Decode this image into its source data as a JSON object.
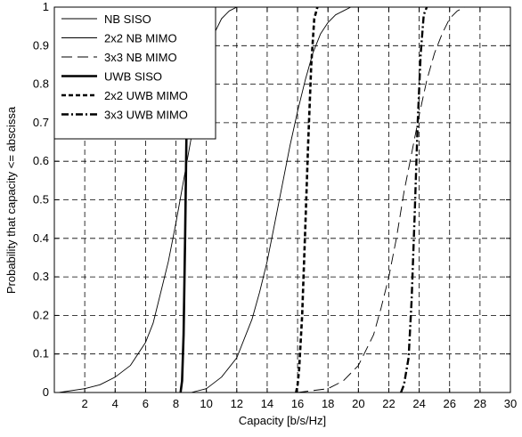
{
  "chart_data": {
    "type": "line",
    "xlabel": "Capacity [b/s/Hz]",
    "ylabel": "Probability that capacity <= abscissa",
    "xlim": [
      0,
      30
    ],
    "ylim": [
      0,
      1
    ],
    "xticks": [
      2,
      4,
      6,
      8,
      10,
      12,
      14,
      16,
      18,
      20,
      22,
      24,
      26,
      28,
      30
    ],
    "yticks": [
      0,
      0.1,
      0.2,
      0.3,
      0.4,
      0.5,
      0.6,
      0.7,
      0.8,
      0.9,
      1
    ],
    "grid": true,
    "legend_position": "top-left",
    "series": [
      {
        "name": "NB SISO",
        "style": "solid-thin",
        "x": [
          0.3,
          2,
          3,
          4,
          5,
          6,
          6.5,
          7,
          7.5,
          8,
          8.5,
          9,
          9.5,
          10,
          10.5,
          11,
          11.5,
          12
        ],
        "y": [
          0,
          0.01,
          0.02,
          0.04,
          0.07,
          0.13,
          0.18,
          0.26,
          0.34,
          0.44,
          0.55,
          0.66,
          0.76,
          0.86,
          0.93,
          0.97,
          0.99,
          1
        ]
      },
      {
        "name": "2x2 NB MIMO",
        "style": "solid-thin",
        "x": [
          9,
          10,
          11,
          12,
          13,
          13.5,
          14,
          14.5,
          15,
          15.5,
          16,
          16.5,
          17,
          17.5,
          18,
          18.5,
          19,
          19.5
        ],
        "y": [
          0,
          0.01,
          0.04,
          0.09,
          0.19,
          0.26,
          0.34,
          0.44,
          0.54,
          0.64,
          0.73,
          0.81,
          0.88,
          0.93,
          0.96,
          0.98,
          0.99,
          1
        ]
      },
      {
        "name": "3x3 NB MIMO",
        "style": "dashed-long",
        "x": [
          16,
          18,
          19,
          20,
          21,
          21.5,
          22,
          22.5,
          23,
          23.5,
          24,
          24.5,
          25,
          25.5,
          26,
          26.5,
          27
        ],
        "y": [
          0,
          0.01,
          0.03,
          0.07,
          0.15,
          0.22,
          0.3,
          0.4,
          0.52,
          0.62,
          0.72,
          0.81,
          0.88,
          0.93,
          0.97,
          0.99,
          1
        ]
      },
      {
        "name": "UWB SISO",
        "style": "solid-thick",
        "x": [
          8.3,
          8.4,
          8.5,
          8.6,
          8.7,
          8.8,
          8.9
        ],
        "y": [
          0,
          0.03,
          0.15,
          0.4,
          0.7,
          0.92,
          1
        ]
      },
      {
        "name": "2x2 UWB MIMO",
        "style": "dashed-short",
        "x": [
          15.9,
          16.0,
          16.1,
          16.3,
          16.5,
          16.7,
          16.9,
          17.1,
          17.3
        ],
        "y": [
          0,
          0.02,
          0.06,
          0.2,
          0.42,
          0.65,
          0.85,
          0.97,
          1
        ]
      },
      {
        "name": "3x3 UWB MIMO",
        "style": "dash-dot",
        "x": [
          22.8,
          23.0,
          23.3,
          23.5,
          23.7,
          23.9,
          24.1,
          24.3,
          24.5
        ],
        "y": [
          0,
          0.02,
          0.09,
          0.24,
          0.46,
          0.7,
          0.88,
          0.98,
          1
        ]
      }
    ]
  }
}
